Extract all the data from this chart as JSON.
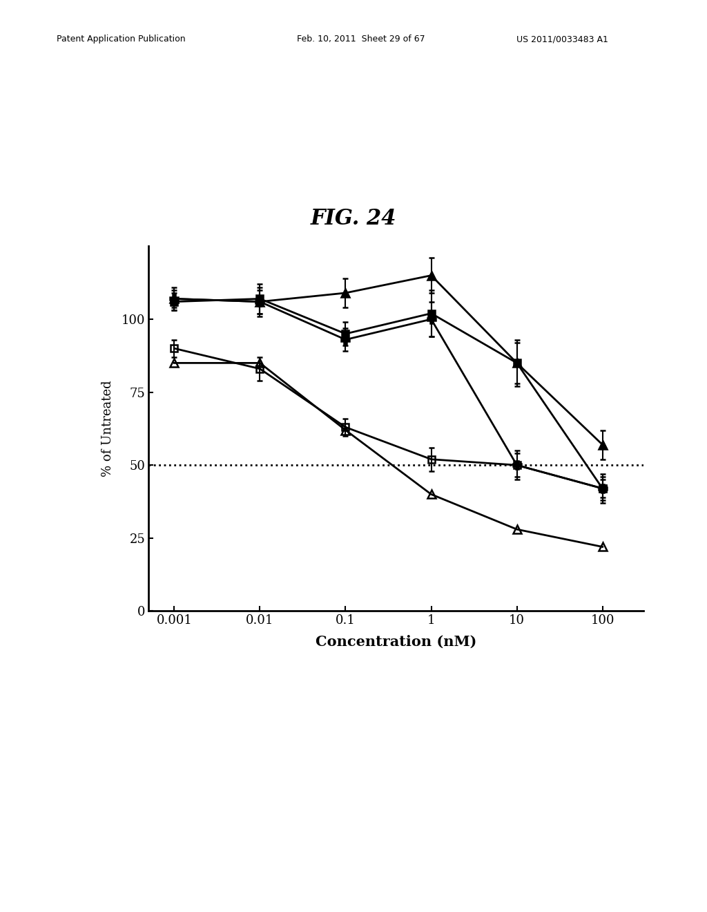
{
  "title": "FIG. 24",
  "xlabel": "Concentration (nM)",
  "ylabel": "% of Untreated",
  "x_values": [
    0.001,
    0.01,
    0.1,
    1,
    10,
    100
  ],
  "series": [
    {
      "label": "filled_triangle",
      "y": [
        107,
        106,
        109,
        115,
        85,
        57
      ],
      "yerr": [
        3,
        4,
        5,
        6,
        8,
        5
      ],
      "marker": "^",
      "fillstyle": "full",
      "color": "black",
      "linewidth": 2.0,
      "markersize": 8
    },
    {
      "label": "filled_square",
      "y": [
        106,
        107,
        95,
        102,
        85,
        42
      ],
      "yerr": [
        3,
        5,
        4,
        8,
        7,
        5
      ],
      "marker": "s",
      "fillstyle": "full",
      "color": "black",
      "linewidth": 2.0,
      "markersize": 7
    },
    {
      "label": "plus_cross",
      "y": [
        107,
        106,
        93,
        100,
        50,
        42
      ],
      "yerr": [
        4,
        5,
        4,
        6,
        5,
        4
      ],
      "marker": "P",
      "fillstyle": "full",
      "color": "black",
      "linewidth": 2.0,
      "markersize": 8
    },
    {
      "label": "open_square",
      "y": [
        90,
        83,
        63,
        52,
        50,
        42
      ],
      "yerr": [
        3,
        4,
        3,
        4,
        4,
        3
      ],
      "marker": "s",
      "fillstyle": "none",
      "color": "black",
      "linewidth": 2.0,
      "markersize": 7
    },
    {
      "label": "open_triangle",
      "y": [
        85,
        85,
        62,
        40,
        28,
        22
      ],
      "yerr": [
        0,
        0,
        0,
        0,
        0,
        0
      ],
      "marker": "^",
      "fillstyle": "none",
      "color": "black",
      "linewidth": 2.0,
      "markersize": 8
    }
  ],
  "hline_y": 50,
  "ylim": [
    0,
    125
  ],
  "yticks": [
    0,
    25,
    50,
    75,
    100
  ],
  "background_color": "#ffffff",
  "header_left": "Patent Application Publication",
  "header_mid": "Feb. 10, 2011  Sheet 29 of 67",
  "header_right": "US 2011/0033483 A1"
}
